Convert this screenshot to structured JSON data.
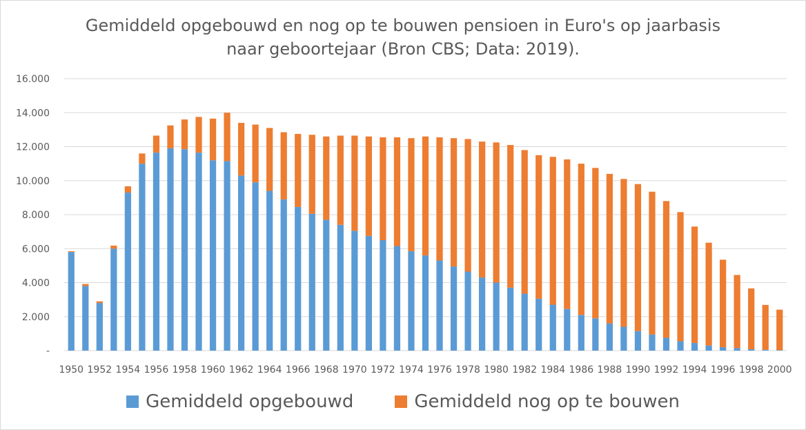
{
  "chart_data": {
    "type": "bar",
    "stacked": true,
    "title_line1": "Gemiddeld opgebouwd en nog op te bouwen pensioen in Euro's op jaarbasis",
    "title_line2": "naar geboortejaar (Bron CBS; Data: 2019).",
    "xlabel": "",
    "ylabel": "",
    "ylim": [
      0,
      16000
    ],
    "yticks": [
      0,
      2000,
      4000,
      6000,
      8000,
      10000,
      12000,
      14000,
      16000
    ],
    "ytick_labels": [
      "-",
      "2.000",
      "4.000",
      "6.000",
      "8.000",
      "10.000",
      "12.000",
      "14.000",
      "16.000"
    ],
    "grid": true,
    "legend_position": "bottom",
    "categories": [
      1950,
      1951,
      1952,
      1953,
      1954,
      1955,
      1956,
      1957,
      1958,
      1959,
      1960,
      1961,
      1962,
      1963,
      1964,
      1965,
      1966,
      1967,
      1968,
      1969,
      1970,
      1971,
      1972,
      1973,
      1974,
      1975,
      1976,
      1977,
      1978,
      1979,
      1980,
      1981,
      1982,
      1983,
      1984,
      1985,
      1986,
      1987,
      1988,
      1989,
      1990,
      1991,
      1992,
      1993,
      1994,
      1995,
      1996,
      1997,
      1998,
      1999,
      2000
    ],
    "xtick_labels": [
      "1950",
      "1952",
      "1954",
      "1956",
      "1958",
      "1960",
      "1962",
      "1964",
      "1966",
      "1968",
      "1970",
      "1972",
      "1974",
      "1976",
      "1978",
      "1980",
      "1982",
      "1984",
      "1986",
      "1988",
      "1990",
      "1992",
      "1994",
      "1996",
      "1998",
      "2000"
    ],
    "series": [
      {
        "name": "Gemiddeld opgebouwd",
        "color": "#5b9bd5",
        "values": [
          5800,
          3800,
          2800,
          6000,
          9300,
          11000,
          11650,
          11900,
          11850,
          11650,
          11200,
          11150,
          10300,
          9900,
          9400,
          8900,
          8450,
          8050,
          7700,
          7400,
          7050,
          6750,
          6500,
          6150,
          5850,
          5600,
          5300,
          4950,
          4650,
          4300,
          4000,
          3700,
          3350,
          3050,
          2700,
          2450,
          2100,
          1900,
          1600,
          1400,
          1150,
          950,
          750,
          550,
          450,
          300,
          200,
          150,
          80,
          50,
          30
        ]
      },
      {
        "name": "Gemiddeld nog op te bouwen",
        "color": "#ed7d31",
        "values": [
          50,
          120,
          100,
          180,
          370,
          600,
          1000,
          1350,
          1750,
          2100,
          2450,
          2850,
          3100,
          3400,
          3700,
          3950,
          4300,
          4650,
          4900,
          5250,
          5600,
          5850,
          6050,
          6400,
          6650,
          7000,
          7250,
          7550,
          7800,
          8000,
          8250,
          8400,
          8450,
          8450,
          8700,
          8800,
          8900,
          8850,
          8800,
          8700,
          8650,
          8400,
          8050,
          7600,
          6850,
          6050,
          5150,
          4300,
          3580,
          2640,
          2380
        ]
      }
    ]
  }
}
